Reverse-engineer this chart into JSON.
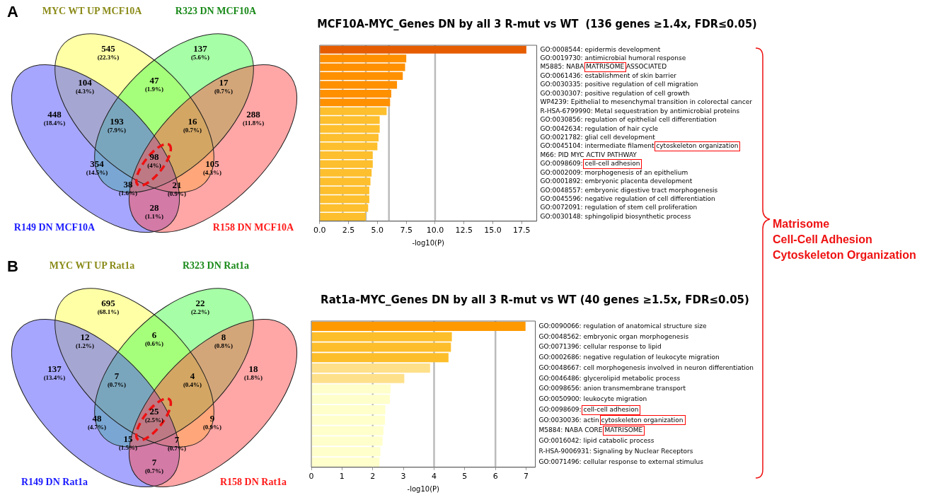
{
  "chart_data": [
    {
      "type": "other",
      "annotations": [
        "A",
        "MYC WT UP MCF10A",
        "R323 DN MCF10A",
        "R149 DN MCF10A",
        "R158 DN MCF10A",
        "545",
        "(22.3%)",
        "137",
        "(5.6%)",
        "104",
        "(4.3%)",
        "47",
        "(1.9%)",
        "17",
        "(0.7%)",
        "448",
        "(18.4%)",
        "193",
        "(7.9%)",
        "16",
        "(0.7%)",
        "288",
        "(11.8%)",
        "354",
        "(14.5%)",
        "98",
        "(4%)",
        "105",
        "(4.3%)",
        "38",
        "(1.6%)",
        "21",
        "(0.9%)",
        "28",
        "(1.1%)"
      ]
    },
    {
      "type": "bar",
      "orientation": "horizontal",
      "title": "MCF10A-MYC_Genes DN by all 3 R-mut vs WT  (136 genes ≥1.4x, FDR≤0.05)",
      "xlabel": "-log10(P)",
      "categories": [
        "GO:0008544: epidermis development",
        "GO:0019730: antimicrobial humoral response",
        "M5885: NABA MATRISOME ASSOCIATED",
        "GO:0061436: establishment of skin barrier",
        "GO:0030335: positive regulation of cell migration",
        "GO:0030307: positive regulation of cell growth",
        "WP4239: Epithelial to mesenchymal transition in colorectal cancer",
        "R-HSA-6799990: Metal sequestration by antimicrobial proteins",
        "GO:0030856: regulation of epithelial cell differentiation",
        "GO:0042634: regulation of hair cycle",
        "GO:0021782: glial cell development",
        "GO:0045104: intermediate filament cytoskeleton organization",
        "M66: PID MYC ACTIV PATHWAY",
        "GO:0098609: cell-cell adhesion",
        "GO:0002009: morphogenesis of an epithelium",
        "GO:0001892: embryonic placenta development",
        "GO:0048557: embryonic digestive tract morphogenesis",
        "GO:0045596: negative regulation of cell differentiation",
        "GO:0072091: regulation of stem cell proliferation",
        "GO:0030148: sphingolipid biosynthetic process"
      ],
      "values": [
        17.9,
        7.5,
        7.4,
        7.2,
        6.7,
        6.2,
        6.1,
        5.8,
        5.2,
        5.2,
        5.1,
        5.0,
        4.6,
        4.6,
        4.5,
        4.4,
        4.3,
        4.3,
        4.2,
        4.0
      ],
      "colors": [
        "#e65c00",
        "#ff9000",
        "#ff9000",
        "#ff9000",
        "#ff9000",
        "#ff9000",
        "#ff9000",
        "#fdbf2d",
        "#fdbf2d",
        "#fdbf2d",
        "#fdbf2d",
        "#fdbf2d",
        "#fdbf2d",
        "#fdbf2d",
        "#fdbf2d",
        "#fdbf2d",
        "#fdbf2d",
        "#fdbf2d",
        "#fdbf2d",
        "#fdbf2d"
      ],
      "xlim": [
        0,
        18.8
      ],
      "xticks": [
        {
          "value": 0,
          "label": "0.0"
        },
        {
          "value": 2.5,
          "label": "2.5"
        },
        {
          "value": 5,
          "label": "5.0"
        },
        {
          "value": 7.5,
          "label": "7.5"
        },
        {
          "value": 10,
          "label": "10.0"
        },
        {
          "value": 12.5,
          "label": "12.5"
        },
        {
          "value": 15,
          "label": "15.0"
        },
        {
          "value": 17.5,
          "label": "17.5"
        }
      ],
      "ref_lines": [
        {
          "axis": "x",
          "value": 2,
          "color": "#bbbbbb"
        },
        {
          "axis": "x",
          "value": 4,
          "color": "#bbbbbb"
        },
        {
          "axis": "x",
          "value": 6,
          "color": "#bbbbbb"
        },
        {
          "axis": "x",
          "value": 10,
          "color": "#bbbbbb"
        }
      ]
    },
    {
      "type": "other",
      "annotations": [
        "B",
        "MYC WT UP Rat1a",
        "R323 DN Rat1a",
        "R149 DN Rat1a",
        "R158 DN Rat1a",
        "695",
        "(68.1%)",
        "22",
        "(2.2%)",
        "12",
        "(1.2%)",
        "6",
        "(0.6%)",
        "8",
        "(0.8%)",
        "137",
        "(13.4%)",
        "7",
        "(0.7%)",
        "4",
        "(0.4%)",
        "18",
        "(1.8%)",
        "48",
        "(4.7%)",
        "25",
        "(2.5%)",
        "9",
        "(0.9%)",
        "15",
        "(1.5%)",
        "7",
        "(0.7%)",
        "7",
        "(0.7%)"
      ]
    },
    {
      "type": "bar",
      "orientation": "horizontal",
      "title": "Rat1a-MYC_Genes DN by all 3 R-mut vs WT (40 genes ≥1.5x, FDR≤0.05)",
      "xlabel": "-log10(P)",
      "categories": [
        "GO:0090066: regulation of anatomical structure size",
        "GO:0048562: embryonic organ morphogenesis",
        "GO:0071396: cellular response to lipid",
        "GO:0002686: negative regulation of leukocyte migration",
        "GO:0048667: cell morphogenesis involved in neuron differentiation",
        "GO:0046486: glycerolipid metabolic process",
        "GO:0098656: anion transmembrane transport",
        "GO:0050900: leukocyte migration",
        "GO:0098609: cell-cell adhesion",
        "GO:0030036: actin cytoskeleton organization",
        "M5884: NABA CORE MATRISOME",
        "GO:0016042: lipid catabolic process",
        "R-HSA-9006931: Signaling by Nuclear Receptors",
        "GO:0071496: cellular response to external stimulus"
      ],
      "values": [
        6.98,
        4.58,
        4.55,
        4.47,
        3.87,
        3.03,
        2.58,
        2.56,
        2.41,
        2.4,
        2.35,
        2.32,
        2.25,
        2.22
      ],
      "colors": [
        "#ff9900",
        "#fdbe2b",
        "#fdbe2b",
        "#fdbe2b",
        "#fee08b",
        "#fee08b",
        "#ffffcc",
        "#ffffcc",
        "#ffffcc",
        "#ffffcc",
        "#ffffcc",
        "#ffffcc",
        "#ffffcc",
        "#ffffcc"
      ],
      "xlim": [
        0,
        7.3
      ],
      "xticks": [
        0,
        1,
        2,
        3,
        4,
        5,
        6,
        7
      ],
      "ref_lines": [
        {
          "axis": "x",
          "value": 2,
          "color": "#bbbbbb"
        },
        {
          "axis": "x",
          "value": 4,
          "color": "#bbbbbb"
        },
        {
          "axis": "x",
          "value": 6,
          "color": "#bbbbbb"
        }
      ]
    },
    {
      "type": "other",
      "annotations": [
        "Matrisome",
        "Cell-Cell Adhesion",
        "Cytoskeleton Organization"
      ]
    }
  ]
}
